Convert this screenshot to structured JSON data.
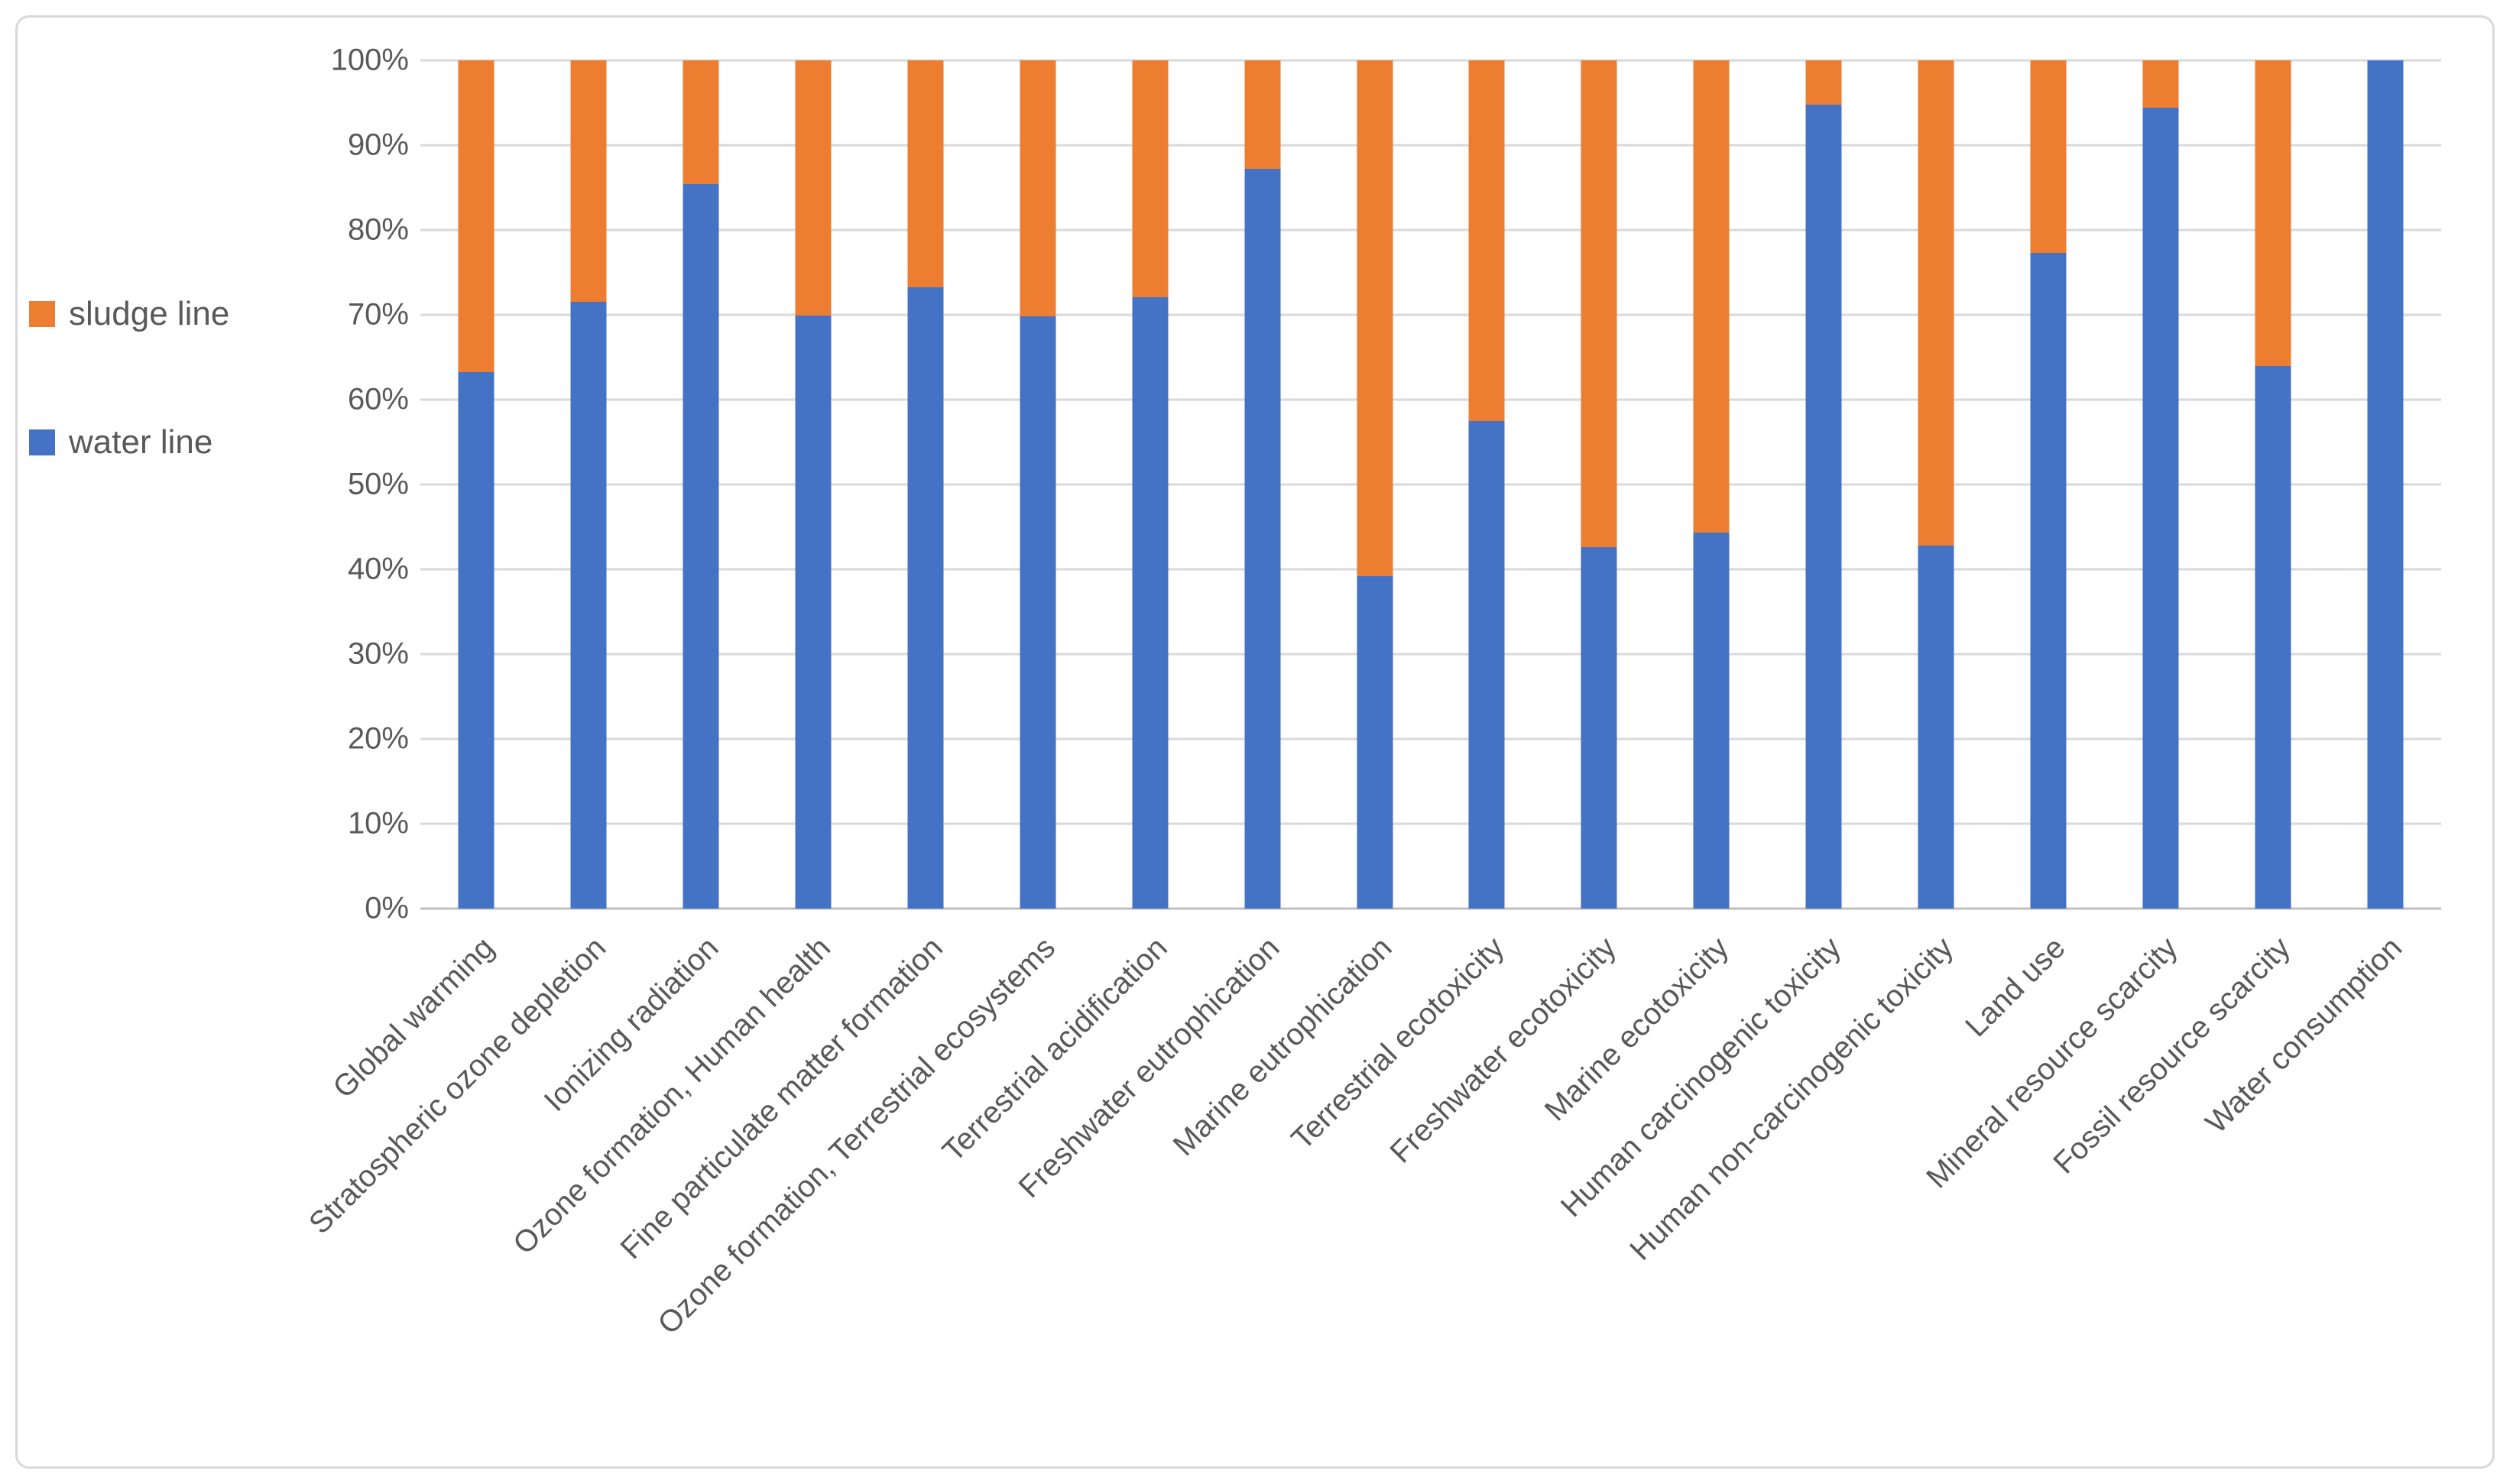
{
  "figure": {
    "title": "",
    "background": "#ffffff",
    "border_color": "#D9D9D9"
  },
  "legend": {
    "position": "left",
    "items": [
      {
        "label": "sludge line",
        "color": "#ED7D31"
      },
      {
        "label": "water line",
        "color": "#4472C4"
      }
    ]
  },
  "axes": {
    "y_tick_labels": [
      "0%",
      "10%",
      "20%",
      "30%",
      "40%",
      "50%",
      "60%",
      "70%",
      "80%",
      "90%",
      "100%"
    ],
    "grid_color": "#D9D9D9",
    "axis_line_color": "#BFBFBF",
    "text_color": "#595959"
  },
  "chart_data": {
    "type": "bar",
    "stacked": true,
    "stacked_mode": "percent",
    "title": "",
    "xlabel": "",
    "ylabel": "",
    "ylim": [
      0,
      100
    ],
    "grid": true,
    "legend_position": "left",
    "categories": [
      "Global warming",
      "Stratospheric ozone depletion",
      "Ionizing radiation",
      "Ozone formation, Human health",
      "Fine particulate matter formation",
      "Ozone formation, Terrestrial ecosystems",
      "Terrestrial acidification",
      "Freshwater eutrophication",
      "Marine eutrophication",
      "Terrestrial ecotoxicity",
      "Freshwater ecotoxicity",
      "Marine ecotoxicity",
      "Human carcinogenic toxicity",
      "Human non-carcinogenic toxicity",
      "Land use",
      "Mineral resource scarcity",
      "Fossil resource scarcity",
      "Water consumption"
    ],
    "series": [
      {
        "name": "water line",
        "color": "#4472C4",
        "values": [
          63.2,
          71.5,
          85.4,
          69.9,
          73.2,
          69.8,
          72.1,
          87.2,
          39.2,
          57.5,
          42.6,
          44.3,
          94.8,
          42.8,
          77.3,
          94.4,
          64.0,
          100.0
        ]
      },
      {
        "name": "sludge line",
        "color": "#ED7D31",
        "values": [
          36.8,
          28.5,
          14.6,
          30.1,
          26.8,
          30.2,
          27.9,
          12.8,
          60.8,
          42.5,
          57.4,
          55.7,
          5.2,
          57.2,
          22.7,
          5.6,
          36.0,
          0.0
        ]
      }
    ]
  }
}
